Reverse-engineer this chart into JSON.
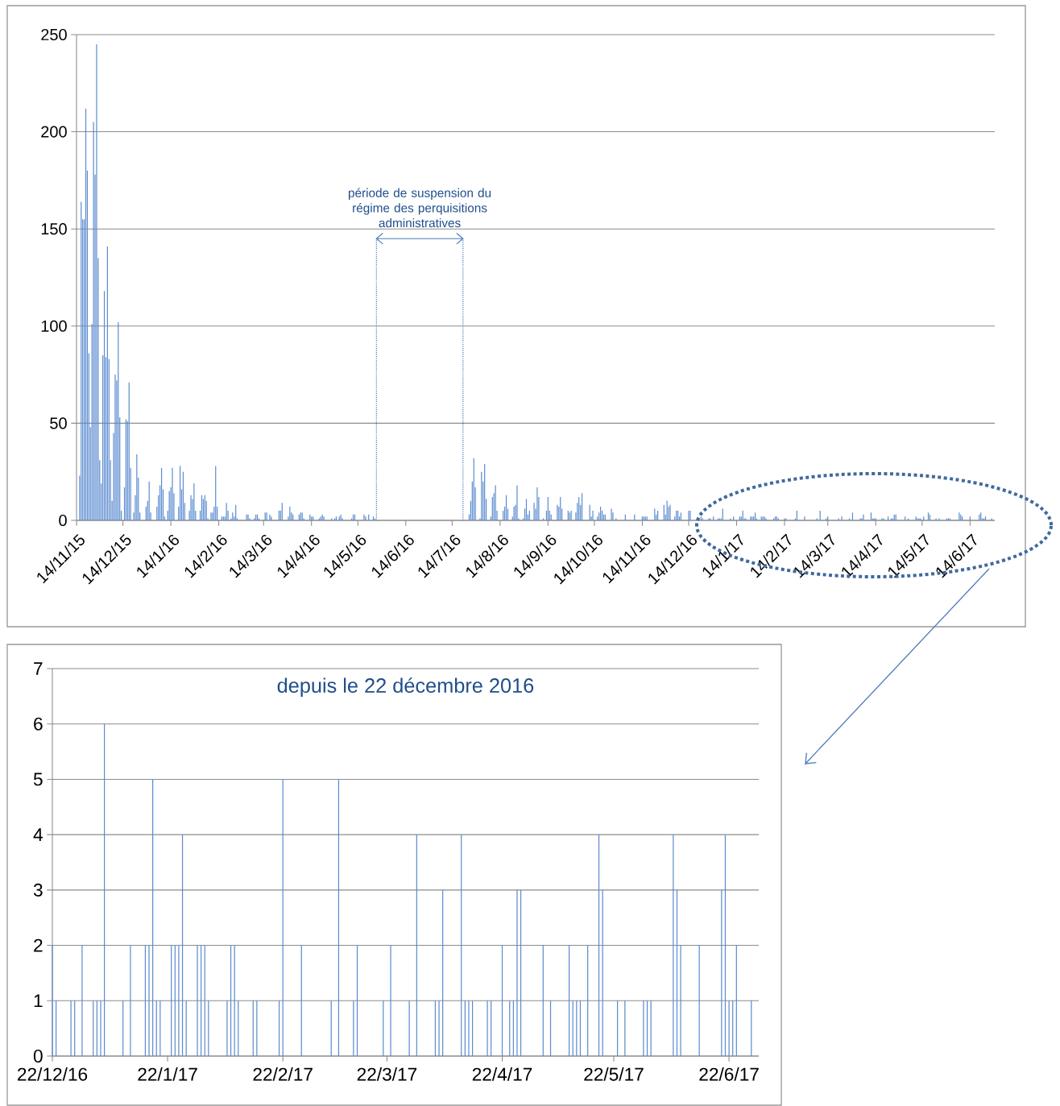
{
  "chart_data": [
    {
      "type": "bar",
      "color": "#5b8bd0",
      "grid": "y",
      "xlim": [
        "2015-11-14",
        "2017-06-30"
      ],
      "ylim": [
        0,
        250
      ],
      "yticks": [
        0,
        50,
        100,
        150,
        200,
        250
      ],
      "xticks": [
        {
          "value": "2015-11-14",
          "label": "14/11/15"
        },
        {
          "value": "2015-12-14",
          "label": "14/12/15"
        },
        {
          "value": "2016-01-14",
          "label": "14/1/16"
        },
        {
          "value": "2016-02-14",
          "label": "14/2/16"
        },
        {
          "value": "2016-03-14",
          "label": "14/3/16"
        },
        {
          "value": "2016-04-14",
          "label": "14/4/16"
        },
        {
          "value": "2016-05-14",
          "label": "14/5/16"
        },
        {
          "value": "2016-06-14",
          "label": "14/6/16"
        },
        {
          "value": "2016-07-14",
          "label": "14/7/16"
        },
        {
          "value": "2016-08-14",
          "label": "14/8/16"
        },
        {
          "value": "2016-09-14",
          "label": "14/9/16"
        },
        {
          "value": "2016-10-14",
          "label": "14/10/16"
        },
        {
          "value": "2016-11-14",
          "label": "14/11/16"
        },
        {
          "value": "2016-12-14",
          "label": "14/12/16"
        },
        {
          "value": "2017-01-14",
          "label": "14/1/17"
        },
        {
          "value": "2017-02-14",
          "label": "14/2/17"
        },
        {
          "value": "2017-03-14",
          "label": "14/3/17"
        },
        {
          "value": "2017-04-14",
          "label": "14/4/17"
        },
        {
          "value": "2017-05-14",
          "label": "14/5/17"
        },
        {
          "value": "2017-06-14",
          "label": "14/6/17"
        }
      ],
      "ref_lines": [
        {
          "axis": "x",
          "value": "2016-05-26",
          "color": "#4a7ebb",
          "line_style": "dotted"
        },
        {
          "axis": "x",
          "value": "2016-07-21",
          "color": "#4a7ebb",
          "line_style": "dotted"
        }
      ],
      "annotations": [
        "période de suspension du régime des perquisitions administratives"
      ],
      "x": [
        "2015-11-16",
        "2015-11-17",
        "2015-11-18",
        "2015-11-19",
        "2015-11-20",
        "2015-11-21",
        "2015-11-22",
        "2015-11-23",
        "2015-11-24",
        "2015-11-25",
        "2015-11-26",
        "2015-11-27",
        "2015-11-28",
        "2015-11-29",
        "2015-11-30",
        "2015-12-01",
        "2015-12-02",
        "2015-12-03",
        "2015-12-04",
        "2015-12-05",
        "2015-12-06",
        "2015-12-07",
        "2015-12-08",
        "2015-12-09",
        "2015-12-10",
        "2015-12-11",
        "2015-12-12",
        "2015-12-13",
        "2015-12-15",
        "2015-12-16",
        "2015-12-17",
        "2015-12-18",
        "2015-12-19",
        "2015-12-21",
        "2015-12-22",
        "2015-12-23",
        "2015-12-24",
        "2015-12-25",
        "2015-12-29",
        "2015-12-30",
        "2015-12-31",
        "2016-01-01",
        "2016-01-05",
        "2016-01-06",
        "2016-01-07",
        "2016-01-08",
        "2016-01-09",
        "2016-01-10",
        "2016-01-12",
        "2016-01-13",
        "2016-01-14",
        "2016-01-15",
        "2016-01-16",
        "2016-01-19",
        "2016-01-20",
        "2016-01-21",
        "2016-01-22",
        "2016-01-23",
        "2016-01-26",
        "2016-01-27",
        "2016-01-28",
        "2016-01-29",
        "2016-01-30",
        "2016-02-02",
        "2016-02-03",
        "2016-02-04",
        "2016-02-05",
        "2016-02-06",
        "2016-02-07",
        "2016-02-09",
        "2016-02-10",
        "2016-02-11",
        "2016-02-12",
        "2016-02-13",
        "2016-02-16",
        "2016-02-17",
        "2016-02-18",
        "2016-02-19",
        "2016-02-20",
        "2016-02-22",
        "2016-02-23",
        "2016-02-24",
        "2016-02-25",
        "2016-02-26",
        "2016-03-03",
        "2016-03-04",
        "2016-03-05",
        "2016-03-08",
        "2016-03-09",
        "2016-03-10",
        "2016-03-11",
        "2016-03-15",
        "2016-03-16",
        "2016-03-18",
        "2016-03-19",
        "2016-03-24",
        "2016-03-25",
        "2016-03-26",
        "2016-03-30",
        "2016-03-31",
        "2016-04-01",
        "2016-04-02",
        "2016-04-06",
        "2016-04-07",
        "2016-04-08",
        "2016-04-09",
        "2016-04-13",
        "2016-04-14",
        "2016-04-15",
        "2016-04-19",
        "2016-04-20",
        "2016-04-21",
        "2016-04-22",
        "2016-04-27",
        "2016-04-29",
        "2016-04-30",
        "2016-05-02",
        "2016-05-03",
        "2016-05-04",
        "2016-05-10",
        "2016-05-11",
        "2016-05-12",
        "2016-05-18",
        "2016-05-19",
        "2016-05-21",
        "2016-05-24",
        "2016-05-25",
        "2016-07-25",
        "2016-07-26",
        "2016-07-27",
        "2016-07-28",
        "2016-07-29",
        "2016-08-01",
        "2016-08-02",
        "2016-08-03",
        "2016-08-04",
        "2016-08-05",
        "2016-08-08",
        "2016-08-09",
        "2016-08-10",
        "2016-08-11",
        "2016-08-12",
        "2016-08-16",
        "2016-08-17",
        "2016-08-18",
        "2016-08-19",
        "2016-08-22",
        "2016-08-23",
        "2016-08-24",
        "2016-08-25",
        "2016-08-26",
        "2016-08-29",
        "2016-08-30",
        "2016-08-31",
        "2016-09-01",
        "2016-09-02",
        "2016-09-05",
        "2016-09-06",
        "2016-09-07",
        "2016-09-08",
        "2016-09-11",
        "2016-09-13",
        "2016-09-14",
        "2016-09-15",
        "2016-09-16",
        "2016-09-20",
        "2016-09-21",
        "2016-09-22",
        "2016-09-23",
        "2016-09-27",
        "2016-09-28",
        "2016-09-29",
        "2016-10-02",
        "2016-10-03",
        "2016-10-04",
        "2016-10-05",
        "2016-10-06",
        "2016-10-11",
        "2016-10-12",
        "2016-10-13",
        "2016-10-16",
        "2016-10-17",
        "2016-10-18",
        "2016-10-19",
        "2016-10-20",
        "2016-10-21",
        "2016-10-25",
        "2016-10-26",
        "2016-10-28",
        "2016-11-03",
        "2016-11-09",
        "2016-11-14",
        "2016-11-15",
        "2016-11-16",
        "2016-11-17",
        "2016-11-22",
        "2016-11-23",
        "2016-11-24",
        "2016-11-28",
        "2016-11-29",
        "2016-11-30",
        "2016-12-01",
        "2016-12-02",
        "2016-12-05",
        "2016-12-06",
        "2016-12-07",
        "2016-12-08",
        "2016-12-09",
        "2016-12-14",
        "2016-12-15",
        "2016-12-22",
        "2016-12-23",
        "2016-12-27",
        "2016-12-28",
        "2016-12-30",
        "2017-01-02",
        "2017-01-03",
        "2017-01-04",
        "2017-01-05",
        "2017-01-10",
        "2017-01-12",
        "2017-01-16",
        "2017-01-17",
        "2017-01-18",
        "2017-01-19",
        "2017-01-20",
        "2017-01-23",
        "2017-01-24",
        "2017-01-25",
        "2017-01-26",
        "2017-01-27",
        "2017-01-30",
        "2017-01-31",
        "2017-02-01",
        "2017-02-02",
        "2017-02-07",
        "2017-02-08",
        "2017-02-09",
        "2017-02-10",
        "2017-02-14",
        "2017-02-15",
        "2017-02-21",
        "2017-02-22",
        "2017-02-27",
        "2017-03-07",
        "2017-03-09",
        "2017-03-13",
        "2017-03-14",
        "2017-03-21",
        "2017-03-23",
        "2017-03-28",
        "2017-03-30",
        "2017-04-04",
        "2017-04-05",
        "2017-04-06",
        "2017-04-11",
        "2017-04-12",
        "2017-04-13",
        "2017-04-14",
        "2017-04-18",
        "2017-04-19",
        "2017-04-22",
        "2017-04-24",
        "2017-04-25",
        "2017-04-26",
        "2017-04-27",
        "2017-05-03",
        "2017-05-05",
        "2017-05-10",
        "2017-05-11",
        "2017-05-12",
        "2017-05-13",
        "2017-05-15",
        "2017-05-18",
        "2017-05-19",
        "2017-05-23",
        "2017-05-25",
        "2017-05-30",
        "2017-05-31",
        "2017-06-01",
        "2017-06-07",
        "2017-06-08",
        "2017-06-09",
        "2017-06-14",
        "2017-06-20",
        "2017-06-21",
        "2017-06-22",
        "2017-06-23",
        "2017-06-24",
        "2017-06-28"
      ],
      "values": [
        23,
        164,
        155,
        155,
        212,
        180,
        86,
        48,
        101,
        205,
        178,
        245,
        135,
        31,
        19,
        85,
        118,
        84,
        141,
        83,
        31,
        10,
        45,
        75,
        72,
        102,
        53,
        5,
        17,
        52,
        51,
        71,
        27,
        4,
        13,
        34,
        22,
        4,
        7,
        10,
        20,
        4,
        7,
        13,
        18,
        27,
        16,
        2,
        5,
        15,
        17,
        27,
        14,
        7,
        28,
        16,
        25,
        9,
        5,
        13,
        11,
        19,
        5,
        5,
        13,
        11,
        13,
        10,
        1,
        4,
        4,
        7,
        28,
        7,
        2,
        2,
        2,
        9,
        5,
        1,
        4,
        2,
        8,
        1,
        3,
        3,
        1,
        1,
        3,
        3,
        1,
        4,
        4,
        3,
        2,
        5,
        5,
        9,
        2,
        7,
        4,
        3,
        3,
        4,
        4,
        1,
        3,
        2,
        2,
        1,
        2,
        3,
        2,
        1,
        1,
        2,
        2,
        3,
        1,
        1,
        3,
        3,
        3,
        2,
        3,
        2,
        1,
        3,
        10,
        20,
        32,
        17,
        1,
        25,
        20,
        29,
        11,
        2,
        12,
        14,
        18,
        5,
        5,
        7,
        13,
        6,
        2,
        7,
        8,
        18,
        1,
        1,
        6,
        11,
        3,
        5,
        9,
        6,
        17,
        12,
        1,
        5,
        12,
        5,
        3,
        8,
        7,
        12,
        6,
        5,
        4,
        5,
        4,
        9,
        12,
        8,
        14,
        8,
        2,
        5,
        2,
        4,
        7,
        5,
        3,
        3,
        6,
        4,
        1,
        3,
        3,
        2,
        2,
        2,
        2,
        6,
        3,
        5,
        8,
        3,
        10,
        7,
        8,
        2,
        5,
        5,
        2,
        4,
        5,
        5,
        2,
        1,
        1,
        1,
        2,
        1,
        1,
        1,
        6,
        1,
        2,
        2,
        2,
        5,
        1,
        1,
        2,
        2,
        2,
        4,
        1,
        2,
        2,
        2,
        1,
        1,
        2,
        2,
        1,
        1,
        1,
        1,
        5,
        2,
        1,
        5,
        1,
        2,
        1,
        2,
        1,
        4,
        1,
        1,
        3,
        4,
        1,
        1,
        1,
        1,
        1,
        2,
        1,
        1,
        3,
        3,
        2,
        1,
        2,
        1,
        1,
        1,
        2,
        4,
        3,
        1,
        1,
        1,
        1,
        1,
        4,
        3,
        2,
        2,
        3,
        4,
        1,
        1,
        2,
        1
      ]
    },
    {
      "type": "bar",
      "color": "#5a8ad0",
      "grid": "y",
      "title": "depuis le 22 décembre 2016",
      "xlim": [
        "2016-12-22",
        "2017-06-30"
      ],
      "ylim": [
        0,
        7
      ],
      "yticks": [
        0,
        1,
        2,
        3,
        4,
        5,
        6,
        7
      ],
      "xticks": [
        {
          "value": "2016-12-22",
          "label": "22/12/16"
        },
        {
          "value": "2017-01-22",
          "label": "22/1/17"
        },
        {
          "value": "2017-02-22",
          "label": "22/2/17"
        },
        {
          "value": "2017-03-22",
          "label": "22/3/17"
        },
        {
          "value": "2017-04-22",
          "label": "22/4/17"
        },
        {
          "value": "2017-05-22",
          "label": "22/5/17"
        },
        {
          "value": "2017-06-22",
          "label": "22/6/17"
        }
      ],
      "x": [
        "2016-12-22",
        "2016-12-23",
        "2016-12-27",
        "2016-12-28",
        "2016-12-30",
        "2017-01-02",
        "2017-01-03",
        "2017-01-04",
        "2017-01-05",
        "2017-01-10",
        "2017-01-12",
        "2017-01-16",
        "2017-01-17",
        "2017-01-18",
        "2017-01-19",
        "2017-01-20",
        "2017-01-23",
        "2017-01-24",
        "2017-01-25",
        "2017-01-26",
        "2017-01-27",
        "2017-01-30",
        "2017-01-31",
        "2017-02-01",
        "2017-02-02",
        "2017-02-07",
        "2017-02-08",
        "2017-02-09",
        "2017-02-10",
        "2017-02-14",
        "2017-02-15",
        "2017-02-21",
        "2017-02-22",
        "2017-02-27",
        "2017-03-07",
        "2017-03-09",
        "2017-03-13",
        "2017-03-14",
        "2017-03-21",
        "2017-03-23",
        "2017-03-28",
        "2017-03-30",
        "2017-04-04",
        "2017-04-05",
        "2017-04-06",
        "2017-04-11",
        "2017-04-12",
        "2017-04-13",
        "2017-04-14",
        "2017-04-18",
        "2017-04-19",
        "2017-04-22",
        "2017-04-24",
        "2017-04-25",
        "2017-04-26",
        "2017-04-27",
        "2017-05-03",
        "2017-05-05",
        "2017-05-10",
        "2017-05-11",
        "2017-05-12",
        "2017-05-13",
        "2017-05-15",
        "2017-05-18",
        "2017-05-19",
        "2017-05-23",
        "2017-05-25",
        "2017-05-30",
        "2017-05-31",
        "2017-06-01",
        "2017-06-07",
        "2017-06-08",
        "2017-06-09",
        "2017-06-14",
        "2017-06-20",
        "2017-06-21",
        "2017-06-22",
        "2017-06-23",
        "2017-06-24",
        "2017-06-28"
      ],
      "values": [
        2,
        1,
        1,
        1,
        2,
        1,
        1,
        1,
        6,
        1,
        2,
        2,
        2,
        5,
        1,
        1,
        2,
        2,
        2,
        4,
        1,
        2,
        2,
        2,
        1,
        1,
        2,
        2,
        1,
        1,
        1,
        1,
        5,
        2,
        1,
        5,
        1,
        2,
        1,
        2,
        1,
        4,
        1,
        1,
        3,
        4,
        1,
        1,
        1,
        1,
        1,
        2,
        1,
        1,
        3,
        3,
        2,
        1,
        2,
        1,
        1,
        1,
        2,
        4,
        3,
        1,
        1,
        1,
        1,
        1,
        4,
        3,
        2,
        2,
        3,
        4,
        1,
        1,
        2,
        1
      ]
    }
  ]
}
